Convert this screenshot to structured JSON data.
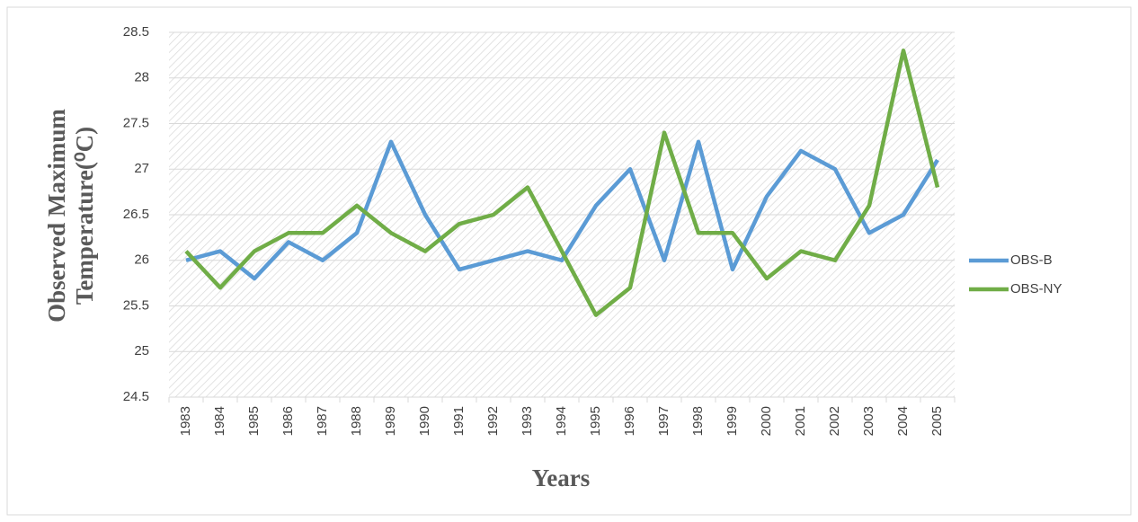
{
  "chart_data": {
    "type": "line",
    "y_label": [
      "Observed Maximum",
      "Temperature(⁰C)"
    ],
    "x_label": "Years",
    "categories": [
      "1983",
      "1984",
      "1985",
      "1986",
      "1987",
      "1988",
      "1989",
      "1990",
      "1991",
      "1992",
      "1993",
      "1994",
      "1995",
      "1996",
      "1997",
      "1998",
      "1999",
      "2000",
      "2001",
      "2002",
      "2003",
      "2004",
      "2005"
    ],
    "series": [
      {
        "name": "OBS-B",
        "color": "#5b9bd5",
        "values": [
          26.0,
          26.1,
          25.8,
          26.2,
          26.0,
          26.3,
          27.3,
          26.5,
          25.9,
          26.0,
          26.1,
          26.0,
          26.6,
          27.0,
          26.0,
          27.3,
          25.9,
          26.7,
          27.2,
          27.0,
          26.3,
          26.5,
          27.1
        ]
      },
      {
        "name": "OBS-NY",
        "color": "#70ad47",
        "values": [
          26.1,
          25.7,
          26.1,
          26.3,
          26.3,
          26.6,
          26.3,
          26.1,
          26.4,
          26.5,
          26.8,
          26.1,
          25.4,
          25.7,
          27.4,
          26.3,
          26.3,
          25.8,
          26.1,
          26.0,
          26.6,
          28.3,
          26.8
        ]
      }
    ],
    "ylim": [
      24.5,
      28.5
    ],
    "yticks": [
      24.5,
      25,
      25.5,
      26,
      26.5,
      27,
      27.5,
      28,
      28.5
    ],
    "grid": true,
    "legend": "right"
  }
}
